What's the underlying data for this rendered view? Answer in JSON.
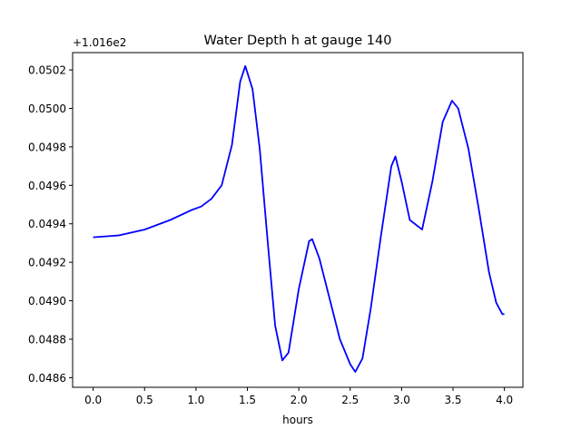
{
  "chart_data": {
    "type": "line",
    "title": "Water Depth h at gauge 140",
    "xlabel": "hours",
    "ylabel": "",
    "y_offset_label": "+1.016e2",
    "xlim": [
      -0.2,
      4.18
    ],
    "ylim": [
      0.04855,
      0.05029
    ],
    "xticks": [
      0.0,
      0.5,
      1.0,
      1.5,
      2.0,
      2.5,
      3.0,
      3.5,
      4.0
    ],
    "xtick_labels": [
      "0.0",
      "0.5",
      "1.0",
      "1.5",
      "2.0",
      "2.5",
      "3.0",
      "3.5",
      "4.0"
    ],
    "yticks": [
      0.0486,
      0.0488,
      0.049,
      0.0492,
      0.0494,
      0.0496,
      0.0498,
      0.05,
      0.0502
    ],
    "ytick_labels": [
      "0.0486",
      "0.0488",
      "0.0490",
      "0.0492",
      "0.0494",
      "0.0496",
      "0.0498",
      "0.0500",
      "0.0502"
    ],
    "grid": false,
    "series": [
      {
        "name": "h",
        "color": "#0000ff",
        "x": [
          0,
          0.25,
          0.5,
          0.75,
          0.95,
          1.05,
          1.15,
          1.25,
          1.35,
          1.43,
          1.48,
          1.55,
          1.62,
          1.7,
          1.77,
          1.84,
          1.9,
          2.0,
          2.1,
          2.13,
          2.2,
          2.3,
          2.4,
          2.5,
          2.55,
          2.62,
          2.7,
          2.8,
          2.9,
          2.94,
          3.0,
          3.08,
          3.2,
          3.3,
          3.4,
          3.49,
          3.55,
          3.65,
          3.75,
          3.85,
          3.92,
          3.98,
          4.0
        ],
        "y": [
          0.04933,
          0.04934,
          0.04937,
          0.04942,
          0.04947,
          0.04949,
          0.04953,
          0.0496,
          0.04981,
          0.05014,
          0.05022,
          0.0501,
          0.04979,
          0.04929,
          0.04887,
          0.04869,
          0.04873,
          0.04906,
          0.04931,
          0.04932,
          0.04922,
          0.04901,
          0.0488,
          0.04867,
          0.04863,
          0.0487,
          0.04896,
          0.04934,
          0.0497,
          0.04975,
          0.04962,
          0.04942,
          0.04937,
          0.04962,
          0.04993,
          0.05004,
          0.05,
          0.04979,
          0.04948,
          0.04915,
          0.04899,
          0.04893,
          0.04893
        ]
      }
    ]
  }
}
